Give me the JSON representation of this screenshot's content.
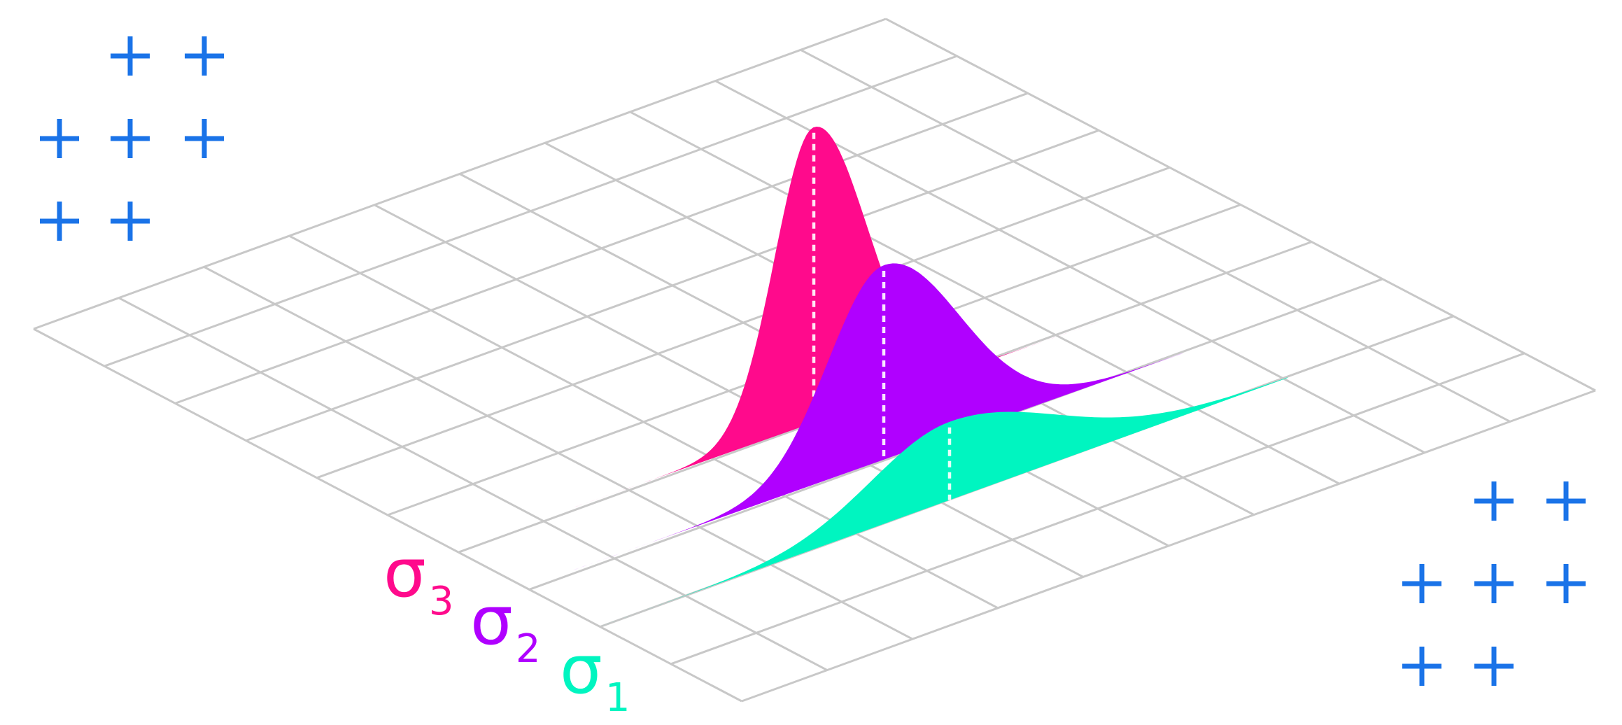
{
  "colors": {
    "grid": "#c8c8c8",
    "plus": "#1a73e8",
    "background": "#ffffff"
  },
  "grid": {
    "rows": 10,
    "cols": 10
  },
  "curves": [
    {
      "id": "sigma3",
      "symbol": "σ",
      "subscript": "3",
      "color": "#ff0a8c",
      "relative_sigma": 0.7,
      "relative_peak": 1.0
    },
    {
      "id": "sigma2",
      "symbol": "σ",
      "subscript": "2",
      "color": "#b000ff",
      "relative_sigma": 1.0,
      "relative_peak": 0.7
    },
    {
      "id": "sigma1",
      "symbol": "σ",
      "subscript": "1",
      "color": "#00f5c0",
      "relative_sigma": 1.4,
      "relative_peak": 0.5
    }
  ],
  "decorations": {
    "top_left_plus_rows": [
      2,
      3,
      2
    ],
    "bottom_right_plus_rows": [
      2,
      3,
      2
    ],
    "icon": "plus-icon"
  }
}
